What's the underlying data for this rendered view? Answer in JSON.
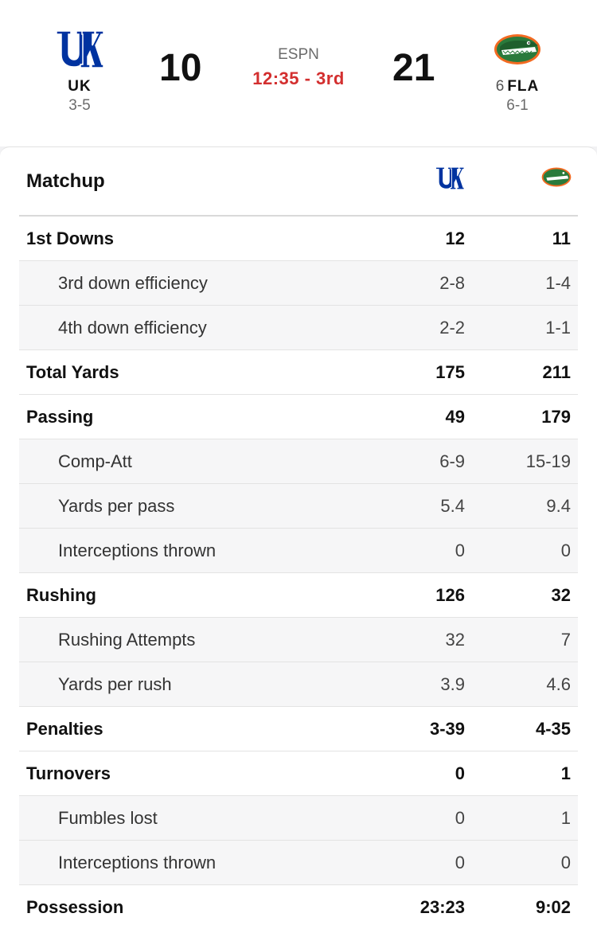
{
  "header": {
    "away": {
      "abbr": "UK",
      "record": "3-5",
      "score": "10"
    },
    "home": {
      "rank": "6",
      "abbr": "FLA",
      "record": "6-1",
      "score": "21"
    },
    "network": "ESPN",
    "clock": "12:35 - 3rd"
  },
  "matchup": {
    "title": "Matchup",
    "rows": [
      {
        "label": "1st Downs",
        "away": "12",
        "home": "11",
        "type": "main"
      },
      {
        "label": "3rd down efficiency",
        "away": "2-8",
        "home": "1-4",
        "type": "sub"
      },
      {
        "label": "4th down efficiency",
        "away": "2-2",
        "home": "1-1",
        "type": "sub"
      },
      {
        "label": "Total Yards",
        "away": "175",
        "home": "211",
        "type": "main"
      },
      {
        "label": "Passing",
        "away": "49",
        "home": "179",
        "type": "main"
      },
      {
        "label": "Comp-Att",
        "away": "6-9",
        "home": "15-19",
        "type": "sub"
      },
      {
        "label": "Yards per pass",
        "away": "5.4",
        "home": "9.4",
        "type": "sub"
      },
      {
        "label": "Interceptions thrown",
        "away": "0",
        "home": "0",
        "type": "sub"
      },
      {
        "label": "Rushing",
        "away": "126",
        "home": "32",
        "type": "main"
      },
      {
        "label": "Rushing Attempts",
        "away": "32",
        "home": "7",
        "type": "sub"
      },
      {
        "label": "Yards per rush",
        "away": "3.9",
        "home": "4.6",
        "type": "sub"
      },
      {
        "label": "Penalties",
        "away": "3-39",
        "home": "4-35",
        "type": "main"
      },
      {
        "label": "Turnovers",
        "away": "0",
        "home": "1",
        "type": "main"
      },
      {
        "label": "Fumbles lost",
        "away": "0",
        "home": "1",
        "type": "sub"
      },
      {
        "label": "Interceptions thrown",
        "away": "0",
        "home": "0",
        "type": "sub"
      },
      {
        "label": "Possession",
        "away": "23:23",
        "home": "9:02",
        "type": "main"
      }
    ]
  },
  "colors": {
    "uk_blue": "#0033a0",
    "gator_green": "#2a7a3b",
    "gator_orange": "#f26a21",
    "clock_red": "#d32f2f"
  },
  "icons": {
    "away_logo": "kentucky-logo-icon",
    "home_logo": "florida-gator-logo-icon"
  }
}
